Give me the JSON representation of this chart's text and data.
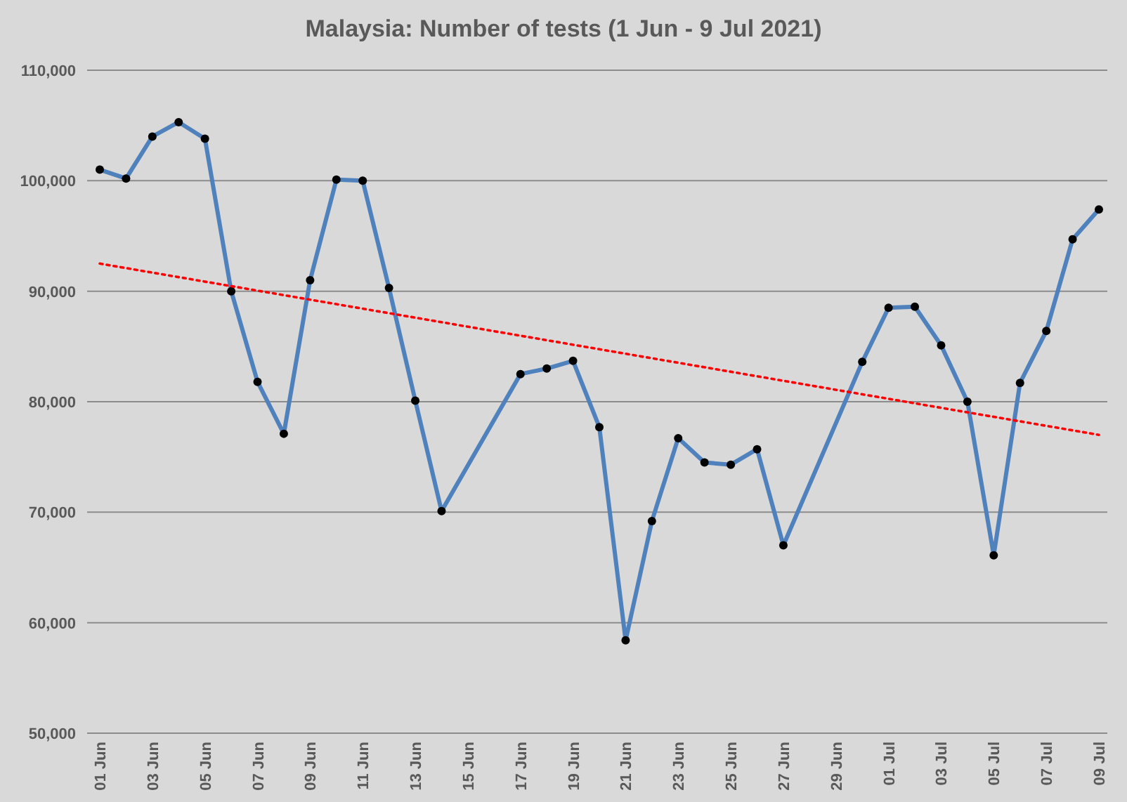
{
  "chart_data": {
    "type": "line",
    "title": "Malaysia: Number of tests (1 Jun - 9 Jul 2021)",
    "categories": [
      "01 Jun",
      null,
      "03 Jun",
      null,
      "05 Jun",
      null,
      "07 Jun",
      null,
      "09 Jun",
      null,
      "11 Jun",
      null,
      "13 Jun",
      null,
      "15 Jun",
      null,
      "17 Jun",
      null,
      "19 Jun",
      null,
      "21 Jun",
      null,
      "23 Jun",
      null,
      "25 Jun",
      null,
      "27 Jun",
      null,
      "29 Jun",
      null,
      "01 Jul",
      null,
      "03 Jul",
      null,
      "05 Jul",
      null,
      "07 Jul",
      null,
      "09 Jul"
    ],
    "series": [
      {
        "color": "#4f81bd",
        "marker": "circle",
        "line_style": "solid",
        "values": [
          101000,
          100200,
          104000,
          105300,
          103800,
          90000,
          81800,
          77100,
          91000,
          100100,
          100000,
          90300,
          80100,
          70100,
          null,
          null,
          82500,
          83000,
          83700,
          77700,
          58400,
          69200,
          76700,
          74500,
          74300,
          75700,
          67000,
          null,
          null,
          83600,
          88500,
          88600,
          85100,
          80000,
          66100,
          81700,
          86400,
          94700,
          97400
        ]
      },
      {
        "color": "#ff0000",
        "marker": "none",
        "line_style": "dotted",
        "values": [
          92500,
          null,
          null,
          null,
          null,
          null,
          null,
          null,
          null,
          null,
          null,
          null,
          null,
          null,
          null,
          null,
          null,
          null,
          null,
          null,
          null,
          null,
          null,
          null,
          null,
          null,
          null,
          null,
          null,
          null,
          null,
          null,
          null,
          null,
          null,
          null,
          null,
          null,
          77000
        ]
      }
    ],
    "ylim": [
      50000,
      110000
    ],
    "yticks": [
      {
        "value": 50000,
        "label": "50,000"
      },
      {
        "value": 60000,
        "label": "60,000"
      },
      {
        "value": 70000,
        "label": "70,000"
      },
      {
        "value": 80000,
        "label": "80,000"
      },
      {
        "value": 90000,
        "label": "90,000"
      },
      {
        "value": 100000,
        "label": "100,000"
      },
      {
        "value": 110000,
        "label": "110,000"
      }
    ],
    "grid": "y"
  }
}
